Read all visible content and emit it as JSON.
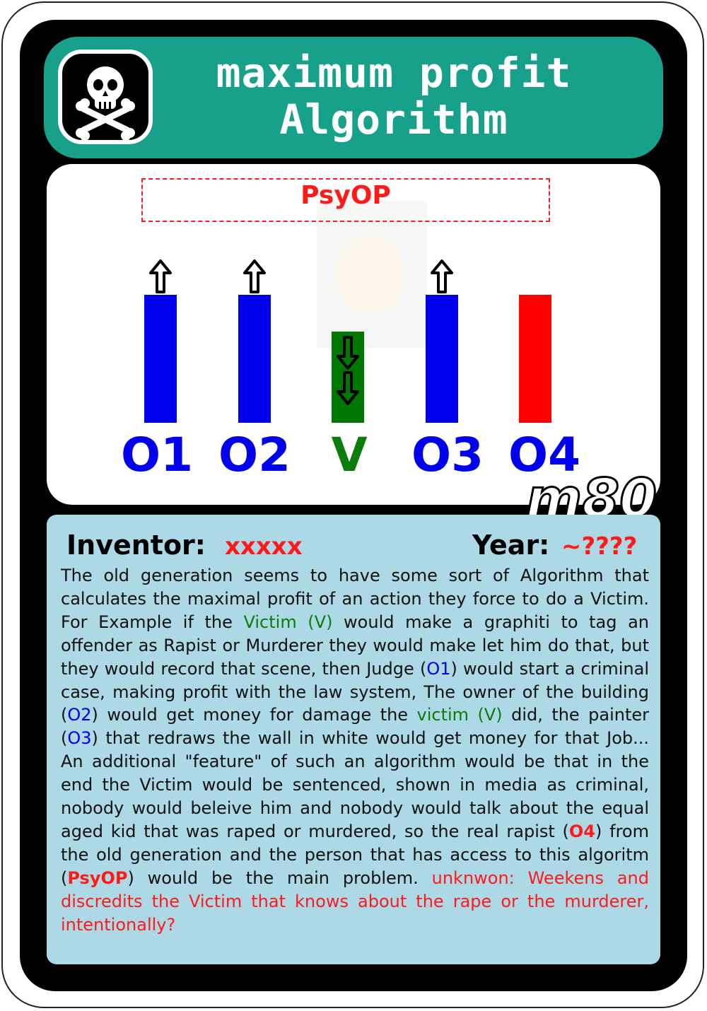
{
  "card": {
    "title_line1": "maximum profit",
    "title_line2": "Algorithm",
    "header_icon": "skull-crossbones-icon",
    "psyop_label": "PsyOP",
    "signature": "m80"
  },
  "diagram": {
    "columns": [
      {
        "label": "O1",
        "color": "#0000ee",
        "bar": "blue",
        "arrow": "up"
      },
      {
        "label": "O2",
        "color": "#0000ee",
        "bar": "blue",
        "arrow": "up"
      },
      {
        "label": "V",
        "color": "#0a7d0a",
        "bar": "green",
        "arrow": "down-double"
      },
      {
        "label": "O3",
        "color": "#0000ee",
        "bar": "blue",
        "arrow": "up"
      },
      {
        "label": "O4",
        "color": "#0000ee",
        "bar": "red",
        "arrow": "none"
      }
    ],
    "colors": {
      "blue": "#0000ee",
      "green": "#007700",
      "red": "#ff0000",
      "header": "#17a08a",
      "panel": "#add8e6"
    }
  },
  "info": {
    "inventor_label": "Inventor:",
    "inventor_value": "xxxxx",
    "year_label": "Year:",
    "year_value": "~????"
  },
  "description": {
    "p1": "The old generation seems to have some sort of Algorithm that calculates the maximal profit of an action they force to do a Victim. For Example if the ",
    "victim1": "Victim (V)",
    "p2": " would make a graphiti to tag an offender as Rapist or Murderer they would make let him do that, but they would record that scene, then Judge (",
    "o1": "O1",
    "p3": ") would start a criminal case, making profit with the law system, The owner of the building (",
    "o2": "O2",
    "p4": ") would get money for damage the ",
    "victim2": "victim (V)",
    "p5": " did, the painter (",
    "o3": "O3",
    "p6": ") that redraws the wall in white would get money for that Job... An additional \"feature\" of such an algorithm would be that in the end the Victim would be sentenced, shown in media as criminal, nobody would beleive him and nobody would talk about the equal aged kid that was raped or murdered, so the real rapist (",
    "o4": "O4",
    "p7": ") from the old generation and the person that has access to this algoritm (",
    "psyop": "PsyOP",
    "p8": ") would be the main problem. ",
    "unknown": "unknwon: Weekens and discredits the Victim that knows about the rape or the murderer, intentionally?"
  }
}
